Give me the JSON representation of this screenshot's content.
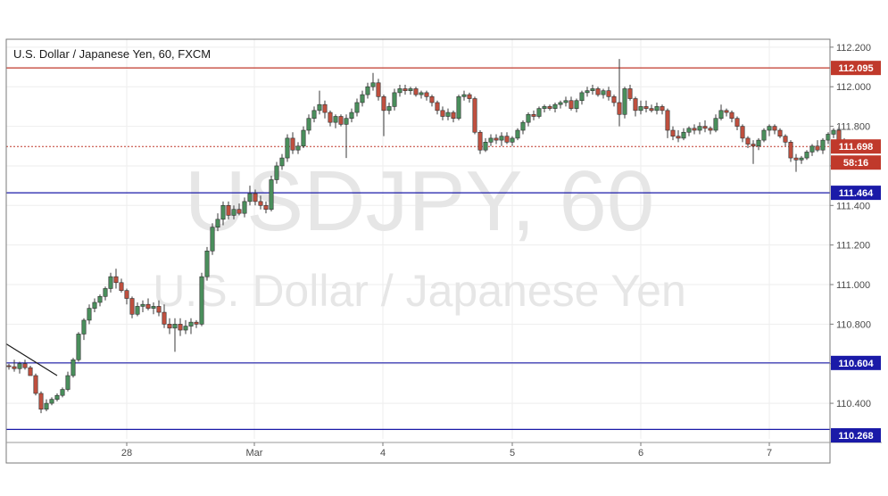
{
  "chart_data": {
    "type": "candlestick",
    "title": "U.S. Dollar / Japanese Yen, 60, FXCM",
    "watermark": {
      "symbol": "USDJPY, 60",
      "name": "U.S. Dollar / Japanese Yen"
    },
    "y_axis": {
      "range": [
        110.22,
        112.24
      ],
      "ticks": [
        "110.400",
        "110.600",
        "110.800",
        "111.000",
        "111.200",
        "111.400",
        "111.600",
        "111.800",
        "112.000",
        "112.200"
      ]
    },
    "x_axis": {
      "labels": [
        "28",
        "Mar",
        "4",
        "5",
        "6",
        "7"
      ]
    },
    "horizontal_levels": [
      {
        "value": 112.095,
        "label": "112.095",
        "color": "#c0392b",
        "style": "solid"
      },
      {
        "value": 111.464,
        "label": "111.464",
        "color": "#1a1aa8",
        "style": "solid"
      },
      {
        "value": 110.604,
        "label": "110.604",
        "color": "#1a1aa8",
        "style": "solid"
      },
      {
        "value": 110.268,
        "label": "110.268",
        "color": "#1a1aa8",
        "style": "solid"
      }
    ],
    "current_price": {
      "value": 111.698,
      "label": "111.698",
      "countdown": "58:16",
      "color": "#c0392b"
    },
    "trendline": {
      "from": [
        0,
        110.7
      ],
      "to": [
        9,
        110.54
      ],
      "color": "#1a1a1a"
    },
    "candles": [
      [
        110.59,
        110.6,
        110.57,
        110.585
      ],
      [
        110.585,
        110.62,
        110.56,
        110.575
      ],
      [
        110.575,
        110.61,
        110.55,
        110.6
      ],
      [
        110.6,
        110.62,
        110.57,
        110.58
      ],
      [
        110.58,
        110.59,
        110.54,
        110.54
      ],
      [
        110.54,
        110.55,
        110.44,
        110.45
      ],
      [
        110.45,
        110.46,
        110.35,
        110.37
      ],
      [
        110.37,
        110.42,
        110.36,
        110.4
      ],
      [
        110.4,
        110.43,
        110.39,
        110.42
      ],
      [
        110.42,
        110.45,
        110.41,
        110.44
      ],
      [
        110.44,
        110.48,
        110.43,
        110.47
      ],
      [
        110.47,
        110.56,
        110.46,
        110.54
      ],
      [
        110.54,
        110.63,
        110.53,
        110.62
      ],
      [
        110.62,
        110.76,
        110.61,
        110.75
      ],
      [
        110.75,
        110.83,
        110.72,
        110.82
      ],
      [
        110.82,
        110.9,
        110.8,
        110.88
      ],
      [
        110.88,
        110.93,
        110.86,
        110.91
      ],
      [
        110.91,
        110.95,
        110.89,
        110.94
      ],
      [
        110.94,
        110.99,
        110.92,
        110.98
      ],
      [
        110.98,
        111.06,
        110.96,
        111.04
      ],
      [
        111.04,
        111.08,
        110.98,
        111.01
      ],
      [
        111.01,
        111.03,
        110.96,
        110.97
      ],
      [
        110.97,
        110.98,
        110.9,
        110.93
      ],
      [
        110.93,
        110.94,
        110.83,
        110.85
      ],
      [
        110.85,
        110.91,
        110.84,
        110.89
      ],
      [
        110.89,
        110.92,
        110.86,
        110.9
      ],
      [
        110.9,
        110.93,
        110.87,
        110.88
      ],
      [
        110.88,
        110.91,
        110.85,
        110.89
      ],
      [
        110.89,
        110.92,
        110.84,
        110.86
      ],
      [
        110.86,
        110.9,
        110.78,
        110.8
      ],
      [
        110.8,
        110.83,
        110.75,
        110.78
      ],
      [
        110.78,
        110.83,
        110.66,
        110.8
      ],
      [
        110.8,
        110.83,
        110.74,
        110.77
      ],
      [
        110.77,
        110.82,
        110.75,
        110.79
      ],
      [
        110.79,
        110.83,
        110.75,
        110.81
      ],
      [
        110.81,
        110.82,
        110.78,
        110.8
      ],
      [
        110.8,
        111.06,
        110.79,
        111.04
      ],
      [
        111.04,
        111.19,
        111.02,
        111.17
      ],
      [
        111.17,
        111.31,
        111.15,
        111.29
      ],
      [
        111.29,
        111.36,
        111.27,
        111.33
      ],
      [
        111.33,
        111.42,
        111.3,
        111.4
      ],
      [
        111.4,
        111.42,
        111.33,
        111.35
      ],
      [
        111.35,
        111.4,
        111.33,
        111.38
      ],
      [
        111.38,
        111.41,
        111.35,
        111.36
      ],
      [
        111.36,
        111.44,
        111.34,
        111.42
      ],
      [
        111.42,
        111.5,
        111.4,
        111.46
      ],
      [
        111.46,
        111.48,
        111.4,
        111.42
      ],
      [
        111.42,
        111.45,
        111.38,
        111.4
      ],
      [
        111.4,
        111.42,
        111.36,
        111.38
      ],
      [
        111.38,
        111.55,
        111.37,
        111.53
      ],
      [
        111.53,
        111.62,
        111.51,
        111.6
      ],
      [
        111.6,
        111.66,
        111.58,
        111.64
      ],
      [
        111.64,
        111.76,
        111.62,
        111.74
      ],
      [
        111.74,
        111.77,
        111.66,
        111.68
      ],
      [
        111.68,
        111.72,
        111.66,
        111.7
      ],
      [
        111.7,
        111.8,
        111.69,
        111.78
      ],
      [
        111.78,
        111.86,
        111.76,
        111.84
      ],
      [
        111.84,
        111.9,
        111.82,
        111.88
      ],
      [
        111.88,
        111.98,
        111.86,
        111.91
      ],
      [
        111.91,
        111.93,
        111.84,
        111.87
      ],
      [
        111.87,
        111.88,
        111.8,
        111.82
      ],
      [
        111.82,
        111.86,
        111.79,
        111.85
      ],
      [
        111.85,
        111.86,
        111.8,
        111.81
      ],
      [
        111.81,
        111.86,
        111.64,
        111.84
      ],
      [
        111.84,
        111.89,
        111.82,
        111.87
      ],
      [
        111.87,
        111.94,
        111.85,
        111.92
      ],
      [
        111.92,
        111.98,
        111.9,
        111.96
      ],
      [
        111.96,
        112.02,
        111.94,
        112.0
      ],
      [
        112.0,
        112.07,
        111.98,
        112.02
      ],
      [
        112.02,
        112.04,
        111.93,
        111.95
      ],
      [
        111.95,
        111.96,
        111.75,
        111.88
      ],
      [
        111.88,
        111.92,
        111.86,
        111.9
      ],
      [
        111.9,
        111.99,
        111.88,
        111.97
      ],
      [
        111.97,
        112.01,
        111.95,
        111.99
      ],
      [
        111.99,
        112.01,
        111.96,
        111.98
      ],
      [
        111.98,
        112.0,
        111.96,
        111.99
      ],
      [
        111.99,
        112.0,
        111.95,
        111.96
      ],
      [
        111.96,
        111.98,
        111.94,
        111.97
      ],
      [
        111.97,
        111.98,
        111.93,
        111.95
      ],
      [
        111.95,
        111.96,
        111.9,
        111.92
      ],
      [
        111.92,
        111.93,
        111.86,
        111.88
      ],
      [
        111.88,
        111.9,
        111.83,
        111.85
      ],
      [
        111.85,
        111.89,
        111.83,
        111.87
      ],
      [
        111.87,
        111.88,
        111.82,
        111.84
      ],
      [
        111.84,
        111.96,
        111.83,
        111.95
      ],
      [
        111.95,
        111.98,
        111.93,
        111.96
      ],
      [
        111.96,
        111.97,
        111.92,
        111.94
      ],
      [
        111.94,
        111.95,
        111.76,
        111.77
      ],
      [
        111.77,
        111.78,
        111.66,
        111.68
      ],
      [
        111.68,
        111.74,
        111.67,
        111.72
      ],
      [
        111.72,
        111.76,
        111.7,
        111.74
      ],
      [
        111.74,
        111.76,
        111.71,
        111.73
      ],
      [
        111.73,
        111.77,
        111.7,
        111.75
      ],
      [
        111.75,
        111.77,
        111.71,
        111.72
      ],
      [
        111.72,
        111.75,
        111.7,
        111.74
      ],
      [
        111.74,
        111.79,
        111.73,
        111.78
      ],
      [
        111.78,
        111.83,
        111.76,
        111.82
      ],
      [
        111.82,
        111.87,
        111.8,
        111.86
      ],
      [
        111.86,
        111.88,
        111.83,
        111.85
      ],
      [
        111.85,
        111.9,
        111.84,
        111.89
      ],
      [
        111.89,
        111.91,
        111.87,
        111.9
      ],
      [
        111.9,
        111.91,
        111.88,
        111.89
      ],
      [
        111.89,
        111.92,
        111.87,
        111.91
      ],
      [
        111.91,
        111.93,
        111.89,
        111.92
      ],
      [
        111.92,
        111.95,
        111.9,
        111.93
      ],
      [
        111.93,
        111.95,
        111.88,
        111.89
      ],
      [
        111.89,
        111.94,
        111.87,
        111.93
      ],
      [
        111.93,
        111.98,
        111.91,
        111.97
      ],
      [
        111.97,
        112.0,
        111.95,
        111.98
      ],
      [
        111.98,
        112.01,
        111.96,
        111.99
      ],
      [
        111.99,
        112.0,
        111.95,
        111.96
      ],
      [
        111.96,
        111.99,
        111.94,
        111.98
      ],
      [
        111.98,
        112.0,
        111.93,
        111.95
      ],
      [
        111.95,
        111.96,
        111.9,
        111.92
      ],
      [
        111.92,
        112.14,
        111.8,
        111.86
      ],
      [
        111.86,
        112.0,
        111.84,
        111.99
      ],
      [
        111.99,
        112.01,
        111.93,
        111.94
      ],
      [
        111.94,
        111.95,
        111.85,
        111.88
      ],
      [
        111.88,
        111.93,
        111.86,
        111.9
      ],
      [
        111.9,
        111.93,
        111.87,
        111.89
      ],
      [
        111.89,
        111.91,
        111.87,
        111.88
      ],
      [
        111.88,
        111.92,
        111.86,
        111.9
      ],
      [
        111.9,
        111.91,
        111.86,
        111.88
      ],
      [
        111.88,
        111.89,
        111.74,
        111.78
      ],
      [
        111.78,
        111.8,
        111.73,
        111.75
      ],
      [
        111.75,
        111.78,
        111.72,
        111.74
      ],
      [
        111.74,
        111.79,
        111.73,
        111.77
      ],
      [
        111.77,
        111.8,
        111.75,
        111.79
      ],
      [
        111.79,
        111.81,
        111.76,
        111.78
      ],
      [
        111.78,
        111.82,
        111.76,
        111.8
      ],
      [
        111.8,
        111.83,
        111.77,
        111.79
      ],
      [
        111.79,
        111.8,
        111.76,
        111.78
      ],
      [
        111.78,
        111.86,
        111.77,
        111.84
      ],
      [
        111.84,
        111.91,
        111.83,
        111.88
      ],
      [
        111.88,
        111.89,
        111.85,
        111.87
      ],
      [
        111.87,
        111.88,
        111.82,
        111.84
      ],
      [
        111.84,
        111.85,
        111.78,
        111.8
      ],
      [
        111.8,
        111.81,
        111.72,
        111.74
      ],
      [
        111.74,
        111.75,
        111.69,
        111.71
      ],
      [
        111.71,
        111.73,
        111.61,
        111.7
      ],
      [
        111.7,
        111.74,
        111.68,
        111.73
      ],
      [
        111.73,
        111.79,
        111.72,
        111.78
      ],
      [
        111.78,
        111.81,
        111.75,
        111.8
      ],
      [
        111.8,
        111.81,
        111.76,
        111.78
      ],
      [
        111.78,
        111.79,
        111.74,
        111.75
      ],
      [
        111.75,
        111.76,
        111.7,
        111.72
      ],
      [
        111.72,
        111.73,
        111.62,
        111.64
      ],
      [
        111.64,
        111.66,
        111.57,
        111.63
      ],
      [
        111.63,
        111.65,
        111.61,
        111.64
      ],
      [
        111.64,
        111.68,
        111.63,
        111.67
      ],
      [
        111.67,
        111.71,
        111.65,
        111.7
      ],
      [
        111.7,
        111.73,
        111.67,
        111.68
      ],
      [
        111.68,
        111.74,
        111.66,
        111.73
      ],
      [
        111.73,
        111.77,
        111.71,
        111.76
      ],
      [
        111.76,
        111.79,
        111.74,
        111.78
      ],
      [
        111.78,
        111.8,
        111.72,
        111.73
      ],
      [
        111.73,
        111.74,
        111.69,
        111.7
      ],
      [
        111.7,
        111.71,
        111.68,
        111.698
      ]
    ]
  }
}
